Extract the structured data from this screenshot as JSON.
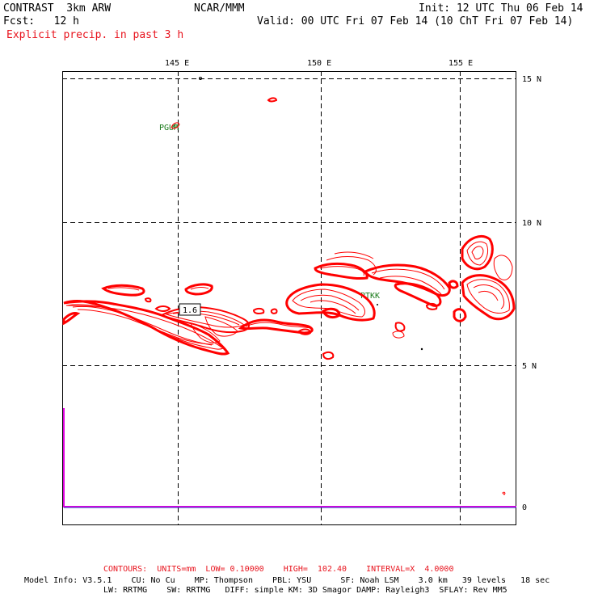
{
  "header": {
    "model": "CONTRAST  3km ARW",
    "center": "NCAR/MMM",
    "init": "Init: 12 UTC Thu 06 Feb 14",
    "fcst": "Fcst:   12 h",
    "valid": "Valid: 00 UTC Fri 07 Feb 14 (10 ChT Fri 07 Feb 14)",
    "field": "Explicit precip. in past 3 h"
  },
  "map": {
    "lon_labels": [
      "145 E",
      "150 E",
      "155 E"
    ],
    "lat_labels": [
      "15 N",
      "10 N",
      "5 N",
      "0"
    ],
    "stations": [
      "PGUM",
      "PTKK"
    ],
    "contour_label": "1.6",
    "contour_color": "#ff0000",
    "timeseries_color": "#e000e0"
  },
  "footer": {
    "contours": "CONTOURS:  UNITS=mm  LOW= 0.10000    HIGH=  102.40    INTERVAL=X  4.0000",
    "model_info_1": "Model Info: V3.5.1    CU: No Cu    MP: Thompson    PBL: YSU      SF: Noah LSM    3.0 km   39 levels   18 sec",
    "model_info_2": "LW: RRTMG    SW: RRTMG   DIFF: simple KM: 3D Smagor DAMP: Rayleigh3  SFLAY: Rev MM5"
  }
}
